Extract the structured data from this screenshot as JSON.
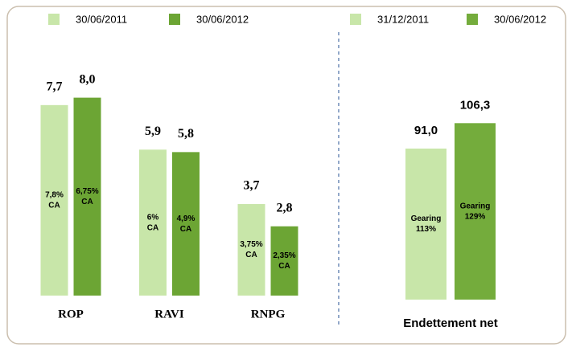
{
  "chart_data": [
    {
      "type": "bar",
      "categories": [
        "ROP",
        "RAVI",
        "RNPG"
      ],
      "series": [
        {
          "name": "30/06/2011",
          "color": "#c8e6a9",
          "values": [
            7.7,
            5.9,
            3.7
          ],
          "value_labels": [
            "7,7",
            "5,9",
            "3,7"
          ],
          "inner_labels": [
            [
              "7,8%",
              "CA"
            ],
            [
              "6%",
              "CA"
            ],
            [
              "3,75%",
              "CA"
            ]
          ]
        },
        {
          "name": "30/06/2012",
          "color": "#6ca534",
          "values": [
            8.0,
            5.8,
            2.8
          ],
          "value_labels": [
            "8,0",
            "5,8",
            "2,8"
          ],
          "inner_labels": [
            [
              "6,75%",
              "CA"
            ],
            [
              "4,9%",
              "CA"
            ],
            [
              "2,35%",
              "CA"
            ]
          ]
        }
      ],
      "ylim": [
        0,
        10
      ]
    },
    {
      "type": "bar",
      "categories": [
        "Endettement net"
      ],
      "series": [
        {
          "name": "31/12/2011",
          "color": "#c8e6a9",
          "values": [
            91.0
          ],
          "value_labels": [
            "91,0"
          ],
          "inner_labels": [
            [
              "Gearing",
              "113%"
            ]
          ]
        },
        {
          "name": "30/06/2012",
          "color": "#74ac3c",
          "values": [
            106.3
          ],
          "value_labels": [
            "106,3"
          ],
          "inner_labels": [
            [
              "Gearing",
              "129%"
            ]
          ]
        }
      ],
      "ylim": [
        0,
        150
      ]
    }
  ]
}
